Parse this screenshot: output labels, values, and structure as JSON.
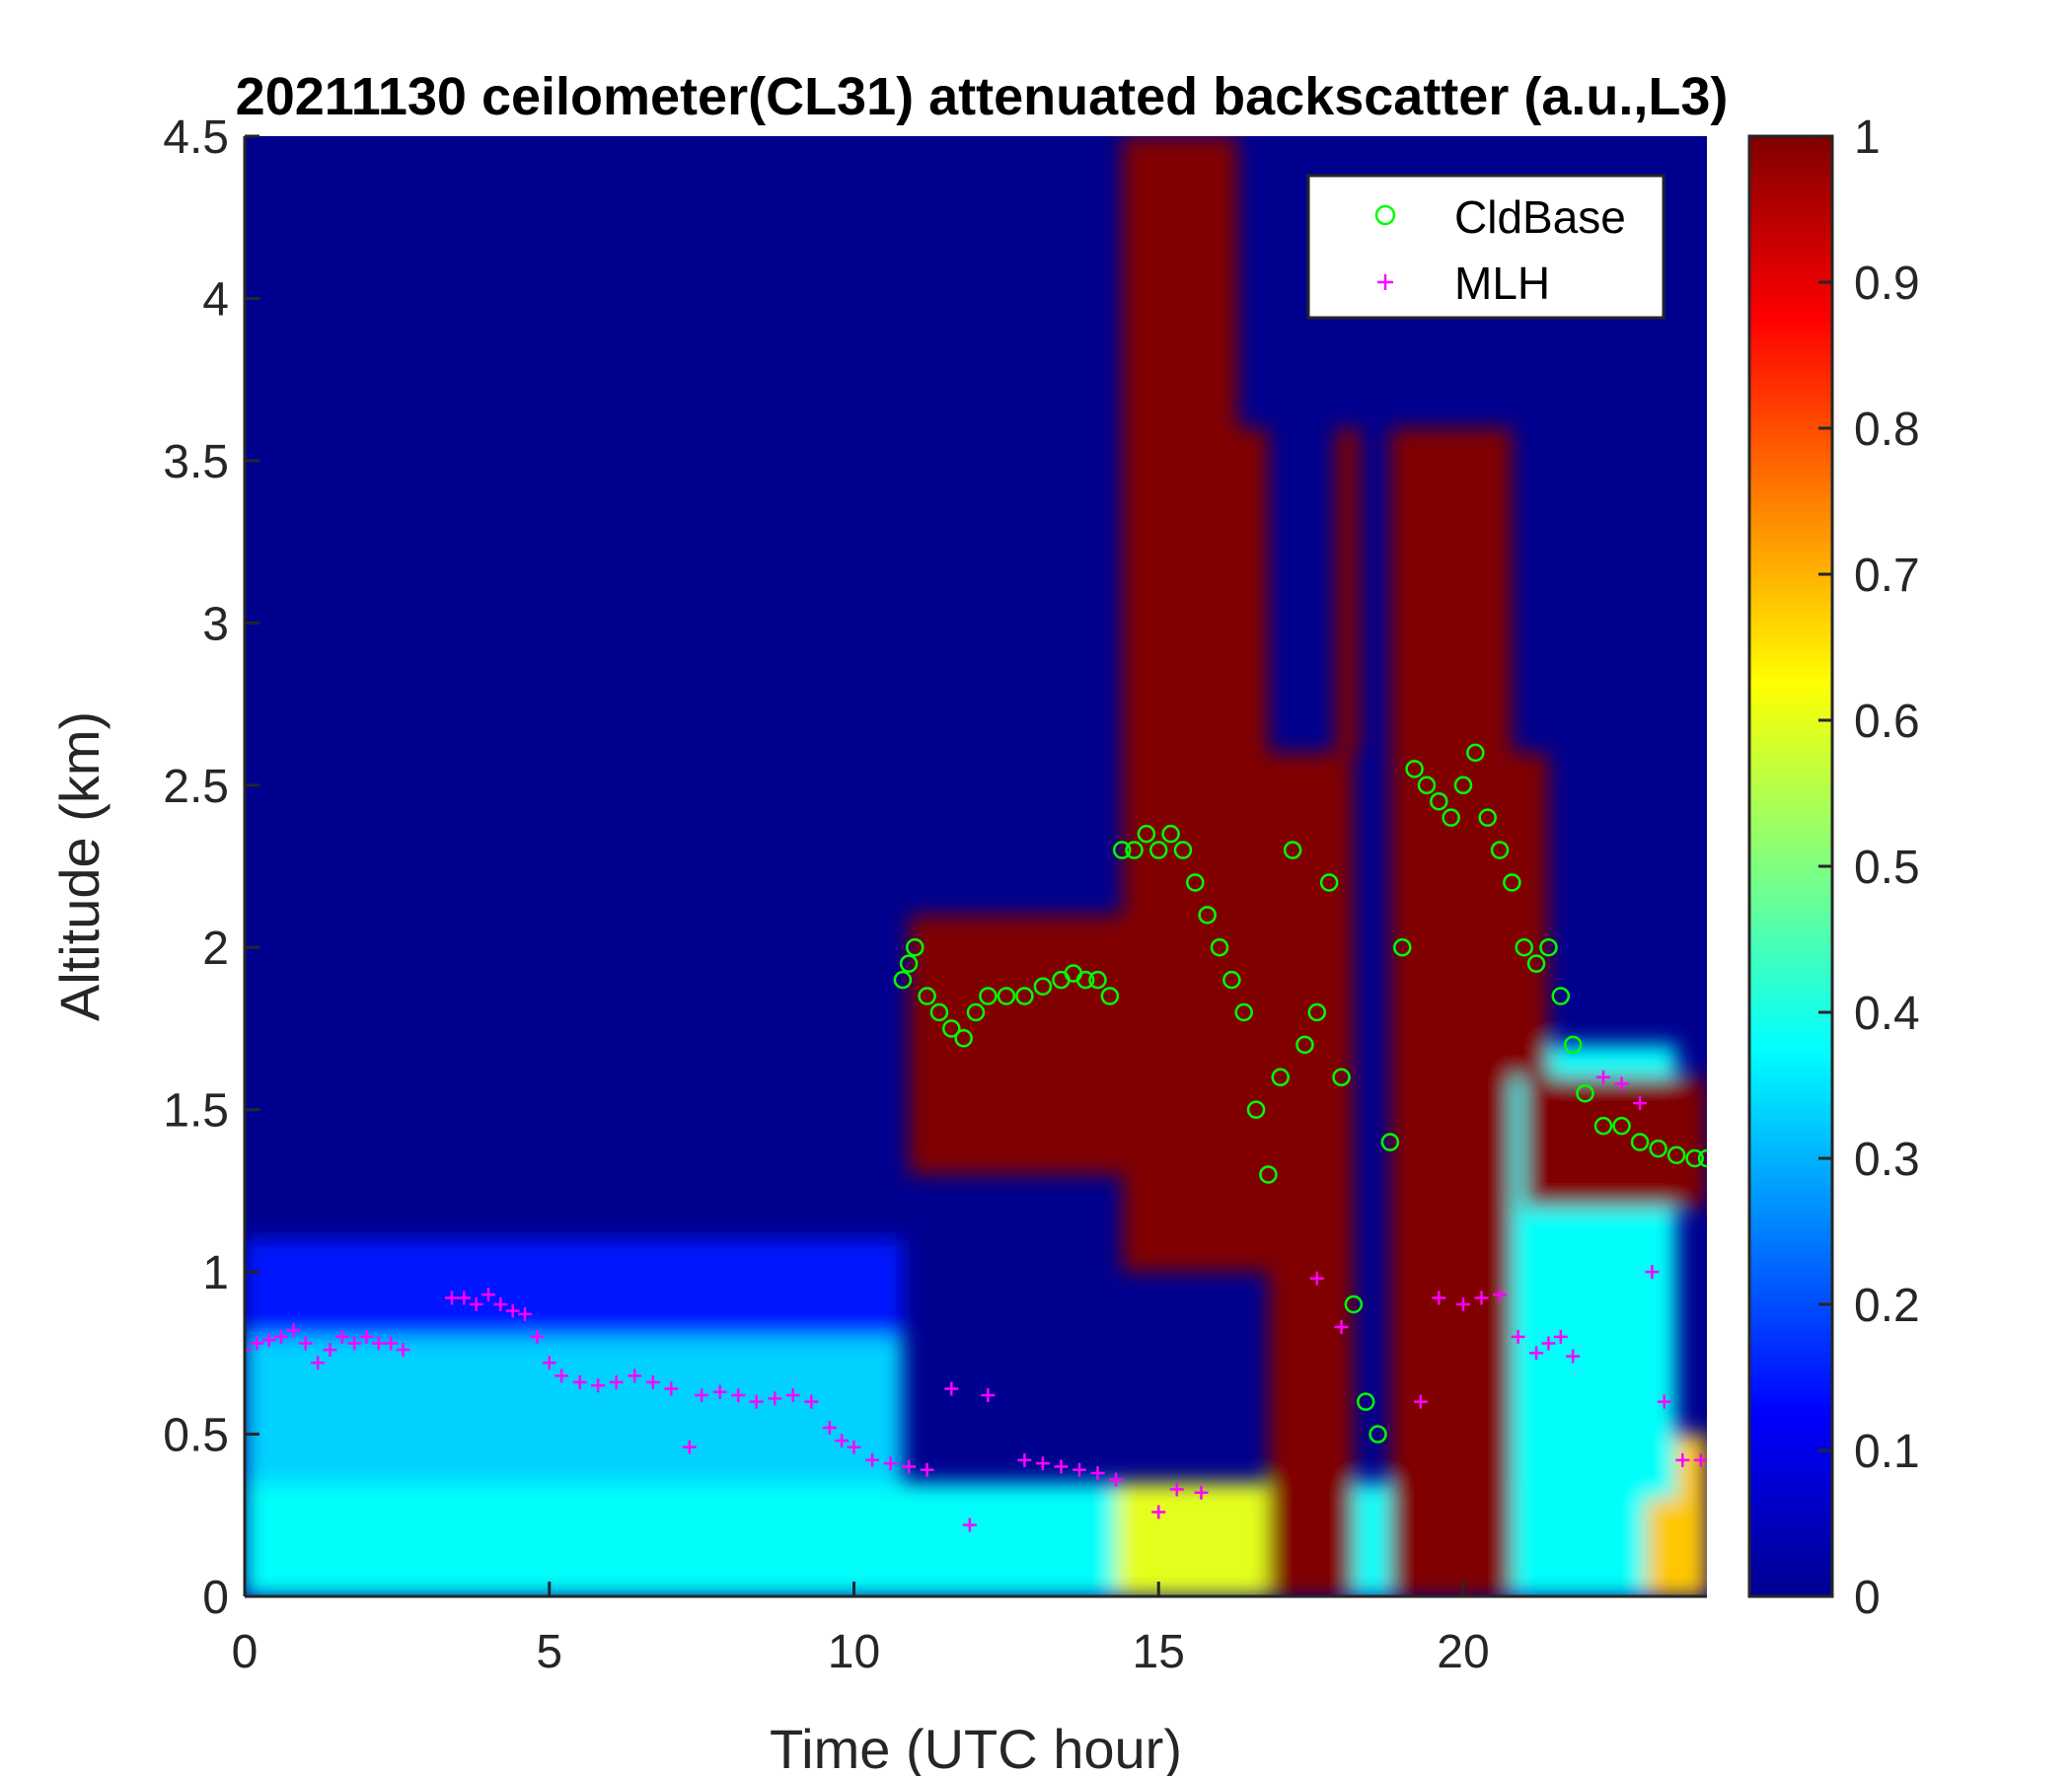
{
  "chart_data": {
    "type": "heatmap",
    "title": "20211130 ceilometer(CL31) attenuated backscatter (a.u.,L3)",
    "xlabel": "Time (UTC hour)",
    "ylabel": "Altitude (km)",
    "xlim": [
      0,
      24
    ],
    "ylim": [
      0,
      4.5
    ],
    "xticks": [
      0,
      5,
      10,
      15,
      20
    ],
    "xtick_labels": [
      "0",
      "5",
      "10",
      "15",
      "20"
    ],
    "yticks": [
      0,
      0.5,
      1,
      1.5,
      2,
      2.5,
      3,
      3.5,
      4,
      4.5
    ],
    "ytick_labels": [
      "0",
      "0.5",
      "1",
      "1.5",
      "2",
      "2.5",
      "3",
      "3.5",
      "4",
      "4.5"
    ],
    "colorbar": {
      "colormap": "jet",
      "range": [
        0,
        1
      ],
      "ticks": [
        0,
        0.1,
        0.2,
        0.3,
        0.4,
        0.5,
        0.6,
        0.7,
        0.8,
        0.9,
        1
      ],
      "tick_labels": [
        "0",
        "0.1",
        "0.2",
        "0.3",
        "0.4",
        "0.5",
        "0.6",
        "0.7",
        "0.8",
        "0.9",
        "1"
      ]
    },
    "legend": {
      "position": "top-right",
      "entries": [
        {
          "label": "CldBase",
          "marker": "circle",
          "color": "#00ff00"
        },
        {
          "label": "MLH",
          "marker": "plus",
          "color": "#ff00ff"
        }
      ]
    },
    "backscatter_regions": [
      {
        "x": [
          0,
          24
        ],
        "y": [
          0,
          0.35
        ],
        "value": 0.38
      },
      {
        "x": [
          0,
          10.8
        ],
        "y": [
          0.35,
          0.8
        ],
        "value": 0.33
      },
      {
        "x": [
          0,
          10.8
        ],
        "y": [
          0.8,
          1.1
        ],
        "value": 0.15
      },
      {
        "x": [
          14.3,
          16.8
        ],
        "y": [
          0,
          0.35
        ],
        "value": 0.6
      },
      {
        "x": [
          23,
          24
        ],
        "y": [
          0,
          0.5
        ],
        "value": 0.68
      },
      {
        "x": [
          20.8,
          23.5
        ],
        "y": [
          0.3,
          1.7
        ],
        "value": 0.38
      },
      {
        "x": [
          10.9,
          14.6
        ],
        "y": [
          1.3,
          2.1
        ],
        "value": 1.0
      },
      {
        "x": [
          14.4,
          16.3
        ],
        "y": [
          1.0,
          4.5
        ],
        "value": 1.0
      },
      {
        "x": [
          16.1,
          16.8
        ],
        "y": [
          1.0,
          3.6
        ],
        "value": 1.0
      },
      {
        "x": [
          16.8,
          18.2
        ],
        "y": [
          0,
          2.6
        ],
        "value": 1.0
      },
      {
        "x": [
          18.8,
          20.8
        ],
        "y": [
          0,
          3.6
        ],
        "value": 1.0
      },
      {
        "x": [
          17.9,
          18.3
        ],
        "y": [
          2.6,
          3.6
        ],
        "value": 1.0
      },
      {
        "x": [
          21,
          24
        ],
        "y": [
          1.2,
          1.6
        ],
        "value": 1.0
      },
      {
        "x": [
          20.2,
          21.4
        ],
        "y": [
          1.6,
          2.6
        ],
        "value": 1.0
      }
    ],
    "series": [
      {
        "name": "CldBase",
        "marker": "circle",
        "color": "#00ff00",
        "x": [
          10.8,
          10.9,
          11.0,
          11.2,
          11.4,
          11.6,
          11.8,
          12.0,
          12.2,
          12.5,
          12.8,
          13.1,
          13.4,
          13.6,
          13.8,
          14.0,
          14.2,
          14.4,
          14.6,
          14.8,
          15.0,
          15.2,
          15.4,
          15.6,
          15.8,
          16.0,
          16.2,
          16.4,
          16.6,
          16.8,
          17.0,
          17.2,
          17.4,
          17.6,
          17.8,
          18.0,
          18.2,
          18.4,
          18.6,
          18.8,
          19.0,
          19.2,
          19.4,
          19.6,
          19.8,
          20.0,
          20.2,
          20.4,
          20.6,
          20.8,
          21.0,
          21.2,
          21.4,
          21.6,
          21.8,
          22.0,
          22.3,
          22.6,
          22.9,
          23.2,
          23.5,
          23.8,
          24.0
        ],
        "y": [
          1.9,
          1.95,
          2.0,
          1.85,
          1.8,
          1.75,
          1.72,
          1.8,
          1.85,
          1.85,
          1.85,
          1.88,
          1.9,
          1.92,
          1.9,
          1.9,
          1.85,
          2.3,
          2.3,
          2.35,
          2.3,
          2.35,
          2.3,
          2.2,
          2.1,
          2.0,
          1.9,
          1.8,
          1.5,
          1.3,
          1.6,
          2.3,
          1.7,
          1.8,
          2.2,
          1.6,
          0.9,
          0.6,
          0.5,
          1.4,
          2.0,
          2.55,
          2.5,
          2.45,
          2.4,
          2.5,
          2.6,
          2.4,
          2.3,
          2.2,
          2.0,
          1.95,
          2.0,
          1.85,
          1.7,
          1.55,
          1.45,
          1.45,
          1.4,
          1.38,
          1.36,
          1.35,
          1.35
        ]
      },
      {
        "name": "MLH",
        "marker": "plus",
        "color": "#ff00ff",
        "x": [
          0.0,
          0.2,
          0.4,
          0.6,
          0.8,
          1.0,
          1.2,
          1.4,
          1.6,
          1.8,
          2.0,
          2.2,
          2.4,
          2.6,
          3.4,
          3.6,
          3.8,
          4.0,
          4.2,
          4.4,
          4.6,
          4.8,
          5.0,
          5.2,
          5.5,
          5.8,
          6.1,
          6.4,
          6.7,
          7.0,
          7.3,
          7.5,
          7.8,
          8.1,
          8.4,
          8.7,
          9.0,
          9.3,
          9.6,
          9.8,
          10.0,
          10.3,
          10.6,
          10.9,
          11.2,
          11.6,
          11.9,
          12.2,
          12.8,
          13.1,
          13.4,
          13.7,
          14.0,
          14.3,
          15.0,
          15.3,
          15.7,
          17.6,
          18.0,
          19.3,
          19.6,
          20.0,
          20.3,
          20.6,
          20.9,
          21.2,
          21.4,
          21.6,
          21.8,
          22.3,
          22.6,
          22.9,
          23.1,
          23.3,
          23.6,
          23.9
        ],
        "y": [
          0.76,
          0.78,
          0.79,
          0.8,
          0.82,
          0.78,
          0.72,
          0.76,
          0.8,
          0.78,
          0.8,
          0.78,
          0.78,
          0.76,
          0.92,
          0.92,
          0.9,
          0.93,
          0.9,
          0.88,
          0.87,
          0.8,
          0.72,
          0.68,
          0.66,
          0.65,
          0.66,
          0.68,
          0.66,
          0.64,
          0.46,
          0.62,
          0.63,
          0.62,
          0.6,
          0.61,
          0.62,
          0.6,
          0.52,
          0.48,
          0.46,
          0.42,
          0.41,
          0.4,
          0.39,
          0.64,
          0.22,
          0.62,
          0.42,
          0.41,
          0.4,
          0.39,
          0.38,
          0.36,
          0.26,
          0.33,
          0.32,
          0.98,
          0.83,
          0.6,
          0.92,
          0.9,
          0.92,
          0.93,
          0.8,
          0.75,
          0.78,
          0.8,
          0.74,
          1.6,
          1.58,
          1.52,
          1.0,
          0.6,
          0.42,
          0.42
        ]
      }
    ]
  }
}
